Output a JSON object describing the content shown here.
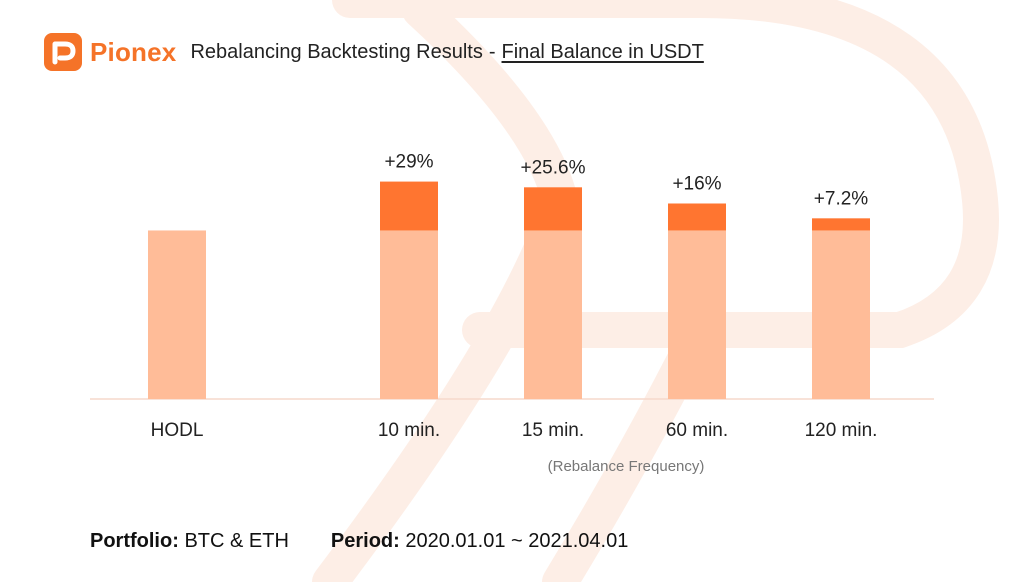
{
  "brand": {
    "name": "Pionex",
    "accent": "#f57328"
  },
  "header": {
    "title": "Rebalancing Backtesting Results",
    "separator": "-",
    "subtitle": "Final Balance in USDT"
  },
  "chart_data": {
    "type": "bar",
    "stacked": true,
    "categories": [
      "HODL",
      "10 min.",
      "15 min.",
      "60 min.",
      "120 min."
    ],
    "series": [
      {
        "values": [
          100,
          100,
          100,
          100,
          100
        ],
        "color": "#ffbc98"
      },
      {
        "values": [
          0,
          29,
          25.6,
          16,
          7.2
        ],
        "color": "#ff7530"
      }
    ],
    "data_labels": [
      "",
      "+29%",
      "+25.6%",
      "+16%",
      "+7.2%"
    ],
    "xlabel": "(Rebalance Frequency)",
    "ylim": [
      0,
      178
    ],
    "grid": false,
    "legend": "none"
  },
  "footer": {
    "portfolio_label": "Portfolio:",
    "portfolio_value": "BTC & ETH",
    "period_label": "Period:",
    "period_value": "2020.01.01 ~ 2021.04.01"
  }
}
